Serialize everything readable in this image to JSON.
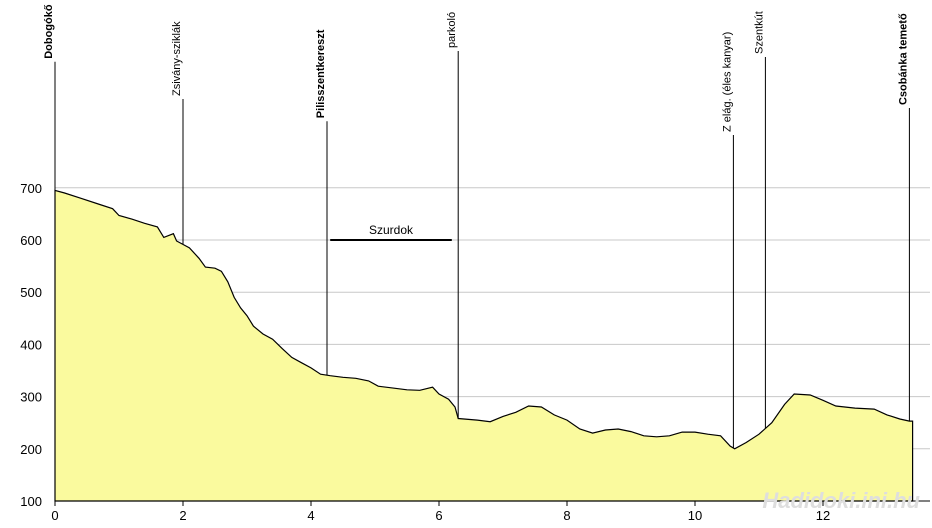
{
  "chart_data": {
    "type": "area",
    "xlim": [
      0,
      13.5
    ],
    "ylim": [
      100,
      700
    ],
    "x_ticks": [
      0,
      2,
      4,
      6,
      8,
      10,
      12
    ],
    "y_ticks": [
      100,
      200,
      300,
      400,
      500,
      600,
      700
    ],
    "grid": "horizontal",
    "colors": {
      "fill": "#fafa9e",
      "line": "#000000",
      "grid": "#c8c8c8",
      "watermark": "#dedede"
    },
    "profile": [
      [
        0.0,
        695
      ],
      [
        0.15,
        690
      ],
      [
        0.4,
        680
      ],
      [
        0.7,
        668
      ],
      [
        0.9,
        660
      ],
      [
        1.0,
        647
      ],
      [
        1.2,
        640
      ],
      [
        1.4,
        632
      ],
      [
        1.6,
        625
      ],
      [
        1.7,
        605
      ],
      [
        1.85,
        612
      ],
      [
        1.9,
        598
      ],
      [
        2.1,
        585
      ],
      [
        2.25,
        565
      ],
      [
        2.35,
        548
      ],
      [
        2.5,
        546
      ],
      [
        2.6,
        540
      ],
      [
        2.7,
        520
      ],
      [
        2.8,
        490
      ],
      [
        2.9,
        470
      ],
      [
        3.0,
        455
      ],
      [
        3.1,
        435
      ],
      [
        3.25,
        420
      ],
      [
        3.4,
        410
      ],
      [
        3.55,
        392
      ],
      [
        3.7,
        375
      ],
      [
        3.85,
        365
      ],
      [
        4.0,
        355
      ],
      [
        4.15,
        343
      ],
      [
        4.3,
        340
      ],
      [
        4.5,
        337
      ],
      [
        4.7,
        335
      ],
      [
        4.9,
        330
      ],
      [
        5.05,
        320
      ],
      [
        5.3,
        316
      ],
      [
        5.5,
        313
      ],
      [
        5.7,
        312
      ],
      [
        5.9,
        318
      ],
      [
        6.0,
        305
      ],
      [
        6.15,
        295
      ],
      [
        6.25,
        280
      ],
      [
        6.3,
        258
      ],
      [
        6.6,
        255
      ],
      [
        6.8,
        252
      ],
      [
        7.0,
        262
      ],
      [
        7.2,
        270
      ],
      [
        7.4,
        282
      ],
      [
        7.6,
        280
      ],
      [
        7.8,
        265
      ],
      [
        8.0,
        255
      ],
      [
        8.2,
        238
      ],
      [
        8.4,
        230
      ],
      [
        8.6,
        236
      ],
      [
        8.8,
        238
      ],
      [
        9.0,
        233
      ],
      [
        9.2,
        225
      ],
      [
        9.4,
        223
      ],
      [
        9.6,
        225
      ],
      [
        9.8,
        232
      ],
      [
        10.0,
        232
      ],
      [
        10.2,
        228
      ],
      [
        10.4,
        225
      ],
      [
        10.55,
        205
      ],
      [
        10.62,
        200
      ],
      [
        10.8,
        212
      ],
      [
        11.0,
        228
      ],
      [
        11.2,
        250
      ],
      [
        11.4,
        285
      ],
      [
        11.55,
        305
      ],
      [
        11.8,
        303
      ],
      [
        12.0,
        293
      ],
      [
        12.2,
        282
      ],
      [
        12.5,
        278
      ],
      [
        12.8,
        276
      ],
      [
        13.0,
        265
      ],
      [
        13.2,
        257
      ],
      [
        13.35,
        253
      ],
      [
        13.4,
        253
      ]
    ],
    "waypoints": [
      {
        "x": 0.0,
        "label": "Dobogókő",
        "bold": true
      },
      {
        "x": 2.0,
        "label": "Zsivány-sziklák",
        "bold": false
      },
      {
        "x": 4.25,
        "label": "Pilisszentkereszt",
        "bold": true
      },
      {
        "x": 6.3,
        "label": "parkoló",
        "bold": false
      },
      {
        "x": 10.6,
        "label": "Z elág. (éles kanyar)",
        "bold": false
      },
      {
        "x": 11.1,
        "label": "Szentkút",
        "bold": false
      },
      {
        "x": 13.35,
        "label": "Csobánka temető",
        "bold": true
      }
    ],
    "annotation": {
      "label": "Szurdok",
      "x_from": 4.3,
      "x_to": 6.2,
      "y": 600
    },
    "watermark": "Hadidoki.ini.hu"
  }
}
